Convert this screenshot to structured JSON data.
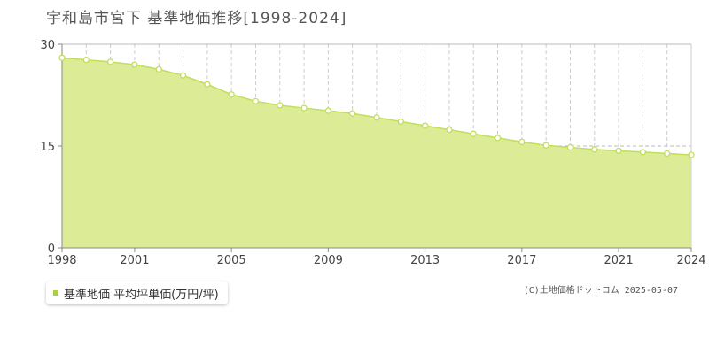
{
  "chart_data": {
    "type": "area",
    "title": "宇和島市宮下 基準地価推移[1998-2024]",
    "x": [
      1998,
      1999,
      2000,
      2001,
      2002,
      2003,
      2004,
      2005,
      2006,
      2007,
      2008,
      2009,
      2010,
      2011,
      2012,
      2013,
      2014,
      2015,
      2016,
      2017,
      2018,
      2019,
      2020,
      2021,
      2022,
      2023,
      2024
    ],
    "series": [
      {
        "name": "基準地価 平均坪単価(万円/坪)",
        "values": [
          28.0,
          27.7,
          27.4,
          27.0,
          26.3,
          25.4,
          24.1,
          22.6,
          21.6,
          21.0,
          20.6,
          20.2,
          19.8,
          19.2,
          18.6,
          18.0,
          17.4,
          16.8,
          16.2,
          15.6,
          15.1,
          14.8,
          14.5,
          14.3,
          14.1,
          13.9,
          13.7
        ]
      }
    ],
    "xticks": [
      "1998",
      "2001",
      "2005",
      "2009",
      "2013",
      "2017",
      "2021",
      "2024"
    ],
    "yticks": [
      "0",
      "15",
      "30"
    ],
    "ylim": [
      0,
      30
    ],
    "grid": true,
    "legend_position": "bottom-left"
  },
  "colors": {
    "fill": "#dcec96",
    "line": "#c2de5a",
    "grid_v": "#cccccc",
    "grid_h": "#bbbbbb",
    "axis": "#888888",
    "legend_swatch": "#a8d044"
  },
  "credit": "(C)土地価格ドットコム 2025-05-07"
}
